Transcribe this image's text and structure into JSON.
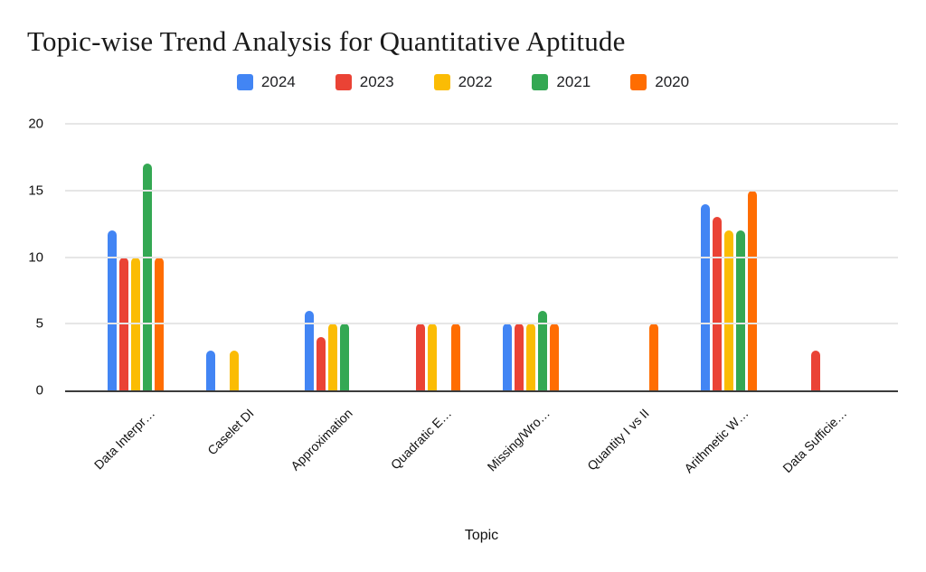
{
  "chart_data": {
    "type": "bar",
    "title": "Topic-wise Trend Analysis for Quantitative Aptitude",
    "xlabel": "Topic",
    "ylabel": "",
    "ylim": [
      0,
      20
    ],
    "yticks": [
      0,
      5,
      10,
      15,
      20
    ],
    "grid": true,
    "legend_position": "top-center",
    "categories": [
      "Data Interpr…",
      "Caselet DI",
      "Approximation",
      "Quadratic E…",
      "Missing/Wro…",
      "Quantity I vs II",
      "Arithmetic W…",
      "Data Sufficie…"
    ],
    "series": [
      {
        "name": "2024",
        "color": "#4285F4",
        "values": [
          12,
          3,
          6,
          0,
          5,
          0,
          14,
          0
        ]
      },
      {
        "name": "2023",
        "color": "#EA4335",
        "values": [
          10,
          0,
          4,
          5,
          5,
          0,
          13,
          3
        ]
      },
      {
        "name": "2022",
        "color": "#FBBC04",
        "values": [
          10,
          3,
          5,
          5,
          5,
          0,
          12,
          0
        ]
      },
      {
        "name": "2021",
        "color": "#34A853",
        "values": [
          17,
          0,
          5,
          0,
          6,
          0,
          12,
          0
        ]
      },
      {
        "name": "2020",
        "color": "#FF6D01",
        "values": [
          10,
          0,
          0,
          5,
          5,
          5,
          15,
          0
        ]
      }
    ]
  },
  "style": {
    "axis_color": "#3c3c3c",
    "gridline_color": "#e6e6e6",
    "text_color": "#111111",
    "background": "#ffffff"
  }
}
